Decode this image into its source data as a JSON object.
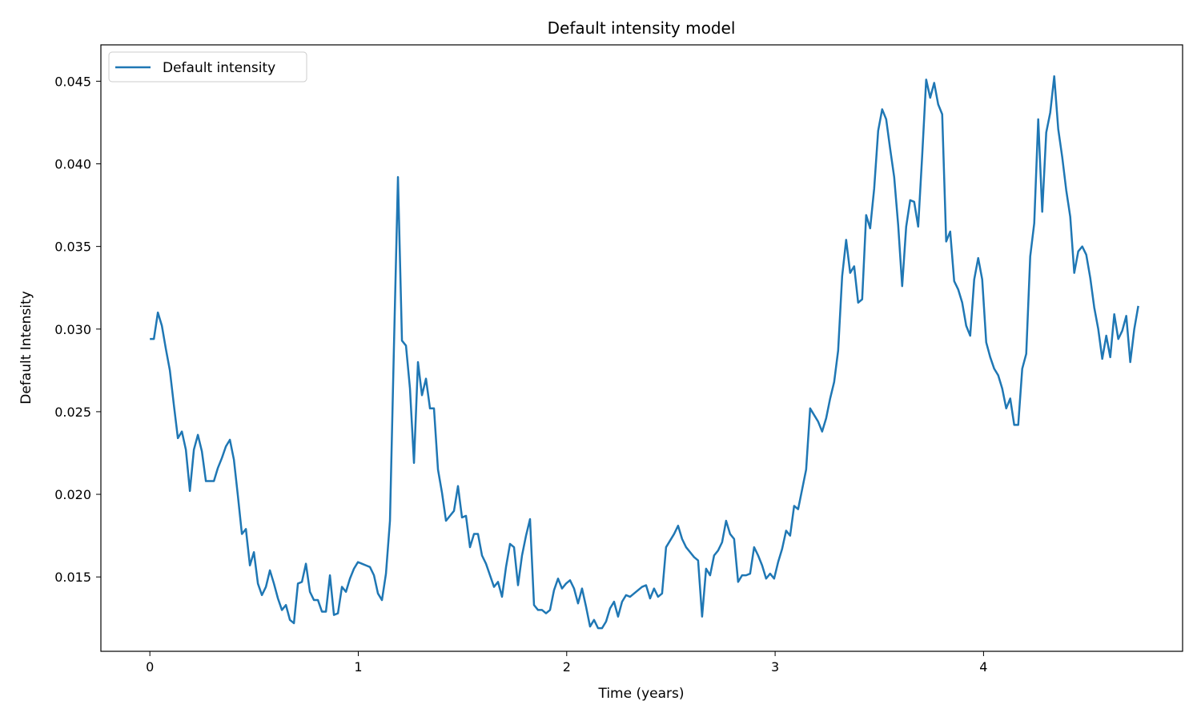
{
  "chart_data": {
    "type": "line",
    "title": "Default intensity model",
    "xlabel": "Time (years)",
    "ylabel": "Default Intensity",
    "xlim": [
      -0.235,
      4.955
    ],
    "ylim": [
      0.0105,
      0.0472
    ],
    "x_ticks": [
      0,
      1,
      2,
      3,
      4
    ],
    "x_tick_labels": [
      "0",
      "1",
      "2",
      "3",
      "4"
    ],
    "y_ticks": [
      0.015,
      0.02,
      0.025,
      0.03,
      0.035,
      0.04,
      0.045
    ],
    "y_tick_labels": [
      "0.015",
      "0.020",
      "0.025",
      "0.030",
      "0.035",
      "0.040",
      "0.045"
    ],
    "grid": false,
    "legend_position": "upper-left",
    "series": [
      {
        "name": "Default intensity",
        "color": "#1f77b4",
        "x_start": 0,
        "x_step": 0.0192,
        "values": [
          0.0294,
          0.0294,
          0.031,
          0.0302,
          0.0288,
          0.0275,
          0.0254,
          0.0234,
          0.0238,
          0.0227,
          0.0202,
          0.0227,
          0.0236,
          0.0226,
          0.0208,
          0.0208,
          0.0208,
          0.0216,
          0.0222,
          0.0229,
          0.0233,
          0.0221,
          0.0199,
          0.0176,
          0.0179,
          0.0157,
          0.0165,
          0.0146,
          0.0139,
          0.0144,
          0.0154,
          0.0146,
          0.0137,
          0.013,
          0.0133,
          0.0124,
          0.0122,
          0.0146,
          0.0147,
          0.0158,
          0.0141,
          0.0136,
          0.0136,
          0.0129,
          0.0129,
          0.0151,
          0.0127,
          0.0128,
          0.0144,
          0.0141,
          0.0149,
          0.0155,
          0.0159,
          0.0158,
          0.0157,
          0.0156,
          0.0151,
          0.014,
          0.0136,
          0.0152,
          0.0184,
          0.029,
          0.0392,
          0.0293,
          0.029,
          0.0264,
          0.0219,
          0.028,
          0.026,
          0.027,
          0.0252,
          0.0252,
          0.0215,
          0.0201,
          0.0184,
          0.0187,
          0.019,
          0.0205,
          0.0186,
          0.0187,
          0.0168,
          0.0176,
          0.0176,
          0.0163,
          0.0158,
          0.0151,
          0.0144,
          0.0147,
          0.0138,
          0.0156,
          0.017,
          0.0168,
          0.0145,
          0.0163,
          0.0175,
          0.0185,
          0.0133,
          0.013,
          0.013,
          0.0128,
          0.013,
          0.0142,
          0.0149,
          0.0143,
          0.0146,
          0.0148,
          0.0143,
          0.0134,
          0.0143,
          0.0132,
          0.012,
          0.0124,
          0.0119,
          0.0119,
          0.0123,
          0.0131,
          0.0135,
          0.0126,
          0.0135,
          0.0139,
          0.0138,
          0.014,
          0.0142,
          0.0144,
          0.0145,
          0.0137,
          0.0143,
          0.0138,
          0.014,
          0.0168,
          0.0172,
          0.0176,
          0.0181,
          0.0173,
          0.0168,
          0.0165,
          0.0162,
          0.016,
          0.0126,
          0.0155,
          0.0151,
          0.0163,
          0.0166,
          0.0171,
          0.0184,
          0.0176,
          0.0173,
          0.0147,
          0.0151,
          0.0151,
          0.0152,
          0.0168,
          0.0163,
          0.0157,
          0.0149,
          0.0152,
          0.0149,
          0.0159,
          0.0167,
          0.0178,
          0.0175,
          0.0193,
          0.0191,
          0.0203,
          0.0215,
          0.0252,
          0.0248,
          0.0244,
          0.0238,
          0.0246,
          0.0258,
          0.0268,
          0.0287,
          0.0332,
          0.0354,
          0.0334,
          0.0338,
          0.0316,
          0.0318,
          0.0369,
          0.0361,
          0.0385,
          0.042,
          0.0433,
          0.0427,
          0.0409,
          0.0392,
          0.0363,
          0.0326,
          0.0362,
          0.0378,
          0.0377,
          0.0362,
          0.0405,
          0.0451,
          0.044,
          0.0449,
          0.0436,
          0.043,
          0.0353,
          0.0359,
          0.0329,
          0.0324,
          0.0316,
          0.0302,
          0.0296,
          0.033,
          0.0343,
          0.033,
          0.0292,
          0.0283,
          0.0276,
          0.0272,
          0.0264,
          0.0252,
          0.0258,
          0.0242,
          0.0242,
          0.0276,
          0.0285,
          0.0344,
          0.0364,
          0.0427,
          0.0371,
          0.0419,
          0.0431,
          0.0453,
          0.0421,
          0.0404,
          0.0384,
          0.0368,
          0.0334,
          0.0347,
          0.035,
          0.0345,
          0.0331,
          0.0313,
          0.03,
          0.0282,
          0.0296,
          0.0283,
          0.0309,
          0.0294,
          0.0299,
          0.0308,
          0.028,
          0.03,
          0.0314
        ]
      }
    ]
  }
}
